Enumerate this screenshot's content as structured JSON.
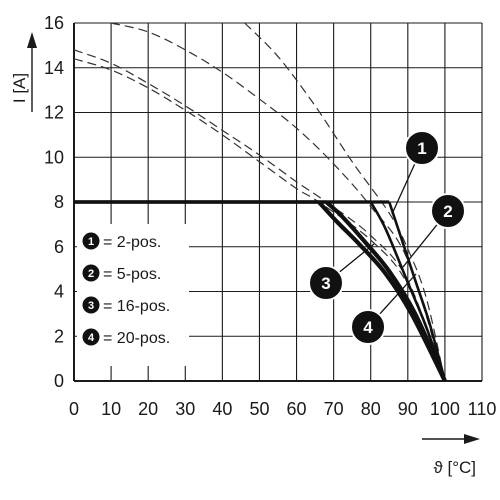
{
  "chart_data": {
    "type": "line",
    "xlabel": "ϑ [°C]",
    "ylabel": "I [A]",
    "xlim": [
      0,
      110
    ],
    "ylim": [
      0,
      16
    ],
    "x_ticks": [
      "0",
      "10",
      "20",
      "30",
      "40",
      "50",
      "60",
      "70",
      "80",
      "90",
      "100",
      "110"
    ],
    "y_ticks": [
      "0",
      "2",
      "4",
      "6",
      "8",
      "10",
      "12",
      "14",
      "16"
    ],
    "grid": true,
    "series": [
      {
        "id": "1",
        "name": "2-pos.",
        "derating": [
          [
            0,
            8
          ],
          [
            85,
            8
          ],
          [
            88,
            6.5
          ],
          [
            92,
            4.5
          ],
          [
            96,
            2.5
          ],
          [
            100,
            0
          ]
        ],
        "max": [
          [
            10,
            16
          ],
          [
            20,
            15.6
          ],
          [
            30,
            14.8
          ],
          [
            40,
            13.8
          ],
          [
            50,
            12.6
          ],
          [
            60,
            11.3
          ],
          [
            70,
            9.7
          ],
          [
            80,
            7.8
          ],
          [
            90,
            5.4
          ],
          [
            100,
            0
          ]
        ]
      },
      {
        "id": "2",
        "name": "5-pos.",
        "derating": [
          [
            0,
            8
          ],
          [
            80,
            8
          ],
          [
            84,
            6.8
          ],
          [
            90,
            4.4
          ],
          [
            95,
            2.4
          ],
          [
            100,
            0
          ]
        ],
        "max": [
          [
            46,
            16
          ],
          [
            55,
            14.5
          ],
          [
            65,
            12.3
          ],
          [
            75,
            9.8
          ],
          [
            85,
            7.5
          ],
          [
            90,
            5.9
          ],
          [
            95,
            3.7
          ],
          [
            100,
            0
          ]
        ]
      },
      {
        "id": "3",
        "name": "16-pos.",
        "derating": [
          [
            0,
            8
          ],
          [
            68,
            8
          ],
          [
            72,
            7.4
          ],
          [
            78,
            6.3
          ],
          [
            85,
            4.9
          ],
          [
            92,
            3
          ],
          [
            100,
            0
          ]
        ],
        "max": [
          [
            0,
            14.8
          ],
          [
            10,
            14.2
          ],
          [
            20,
            13.3
          ],
          [
            30,
            12.3
          ],
          [
            40,
            11.2
          ],
          [
            50,
            10.1
          ],
          [
            60,
            8.9
          ],
          [
            68,
            8
          ],
          [
            80,
            6.5
          ],
          [
            90,
            4.5
          ],
          [
            100,
            0
          ]
        ]
      },
      {
        "id": "4",
        "name": "20-pos.",
        "derating": [
          [
            0,
            8
          ],
          [
            66,
            8
          ],
          [
            71,
            7.1
          ],
          [
            77,
            6.1
          ],
          [
            84,
            4.8
          ],
          [
            91,
            3
          ],
          [
            100,
            0
          ]
        ],
        "max": [
          [
            0,
            14.4
          ],
          [
            10,
            13.9
          ],
          [
            20,
            13.1
          ],
          [
            30,
            12.1
          ],
          [
            40,
            11
          ],
          [
            50,
            9.8
          ],
          [
            60,
            8.6
          ],
          [
            66,
            8
          ],
          [
            80,
            6.3
          ],
          [
            90,
            4.3
          ],
          [
            100,
            0
          ]
        ]
      }
    ],
    "legend": [
      {
        "id": "1",
        "label": "= 2-pos."
      },
      {
        "id": "2",
        "label": "= 5-pos."
      },
      {
        "id": "3",
        "label": "= 16-pos."
      },
      {
        "id": "4",
        "label": "= 20-pos."
      }
    ],
    "legend_position": "left",
    "callouts": [
      "1",
      "2",
      "3",
      "4"
    ]
  }
}
